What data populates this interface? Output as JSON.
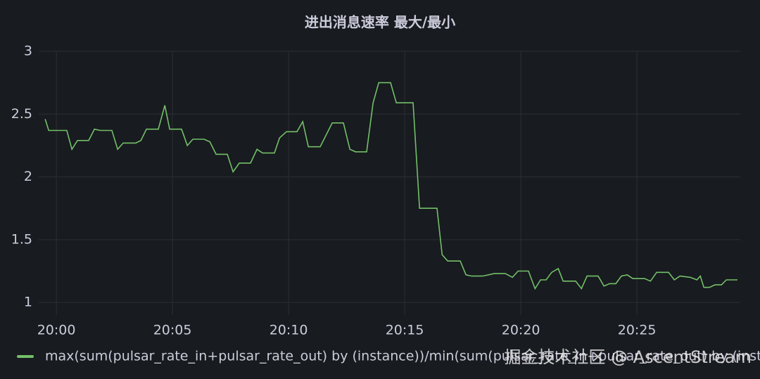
{
  "chart_data": {
    "type": "line",
    "title": "进出消息速率 最大/最小",
    "x": [
      1199.52,
      1199.67,
      1200.45,
      1200.67,
      1200.91,
      1201.39,
      1201.64,
      1201.88,
      1202.39,
      1202.64,
      1202.88,
      1203.42,
      1203.64,
      1203.88,
      1204.39,
      1204.67,
      1204.88,
      1205.39,
      1205.64,
      1205.88,
      1206.36,
      1206.61,
      1206.88,
      1207.36,
      1207.61,
      1207.88,
      1208.36,
      1208.64,
      1208.88,
      1209.39,
      1209.61,
      1209.91,
      1210.36,
      1210.61,
      1210.85,
      1211.36,
      1211.88,
      1212.36,
      1212.64,
      1212.88,
      1213.36,
      1213.64,
      1213.88,
      1214.39,
      1214.64,
      1215.36,
      1215.64,
      1216.39,
      1216.61,
      1216.85,
      1217.39,
      1217.64,
      1217.88,
      1218.36,
      1218.85,
      1219.33,
      1219.64,
      1219.88,
      1220.33,
      1220.61,
      1220.85,
      1221.09,
      1221.33,
      1221.61,
      1221.82,
      1222.36,
      1222.61,
      1222.85,
      1223.33,
      1223.58,
      1223.82,
      1224.09,
      1224.33,
      1224.58,
      1224.82,
      1225.33,
      1225.58,
      1225.85,
      1226.36,
      1226.61,
      1226.85,
      1227.3,
      1227.58,
      1227.73,
      1227.88,
      1228.12,
      1228.36,
      1228.64,
      1228.85,
      1229.33
    ],
    "series": [
      {
        "name": "max(sum(pulsar_rate_in+pulsar_rate_out) by (instance))/min(sum(pulsar_rate_in+pulsar_rate_out) by (instance))",
        "color": "#73bf69",
        "values": [
          2.46,
          2.37,
          2.37,
          2.22,
          2.29,
          2.29,
          2.38,
          2.37,
          2.37,
          2.22,
          2.27,
          2.27,
          2.29,
          2.38,
          2.38,
          2.57,
          2.38,
          2.38,
          2.25,
          2.3,
          2.3,
          2.28,
          2.18,
          2.18,
          2.04,
          2.11,
          2.11,
          2.22,
          2.19,
          2.19,
          2.31,
          2.36,
          2.36,
          2.44,
          2.24,
          2.24,
          2.43,
          2.43,
          2.22,
          2.2,
          2.2,
          2.59,
          2.75,
          2.75,
          2.59,
          2.59,
          1.75,
          1.75,
          1.38,
          1.33,
          1.33,
          1.22,
          1.21,
          1.21,
          1.23,
          1.23,
          1.2,
          1.25,
          1.25,
          1.11,
          1.18,
          1.18,
          1.24,
          1.27,
          1.17,
          1.17,
          1.11,
          1.21,
          1.21,
          1.13,
          1.15,
          1.15,
          1.21,
          1.22,
          1.19,
          1.19,
          1.17,
          1.24,
          1.24,
          1.18,
          1.21,
          1.2,
          1.18,
          1.21,
          1.12,
          1.12,
          1.14,
          1.14,
          1.18,
          1.18
        ]
      }
    ],
    "xlim": [
      1199.24,
      1229.45
    ],
    "xticks": [
      {
        "value": 1200,
        "label": "20:00"
      },
      {
        "value": 1205,
        "label": "20:05"
      },
      {
        "value": 1210,
        "label": "20:10"
      },
      {
        "value": 1215,
        "label": "20:15"
      },
      {
        "value": 1220,
        "label": "20:20"
      },
      {
        "value": 1225,
        "label": "20:25"
      }
    ],
    "ylim": [
      0.9,
      3
    ],
    "yticks": [
      1,
      1.5,
      2,
      2.5,
      3
    ],
    "grid": true,
    "legend": "bottom"
  },
  "watermark": "掘金技术社区 @ AscentStream"
}
